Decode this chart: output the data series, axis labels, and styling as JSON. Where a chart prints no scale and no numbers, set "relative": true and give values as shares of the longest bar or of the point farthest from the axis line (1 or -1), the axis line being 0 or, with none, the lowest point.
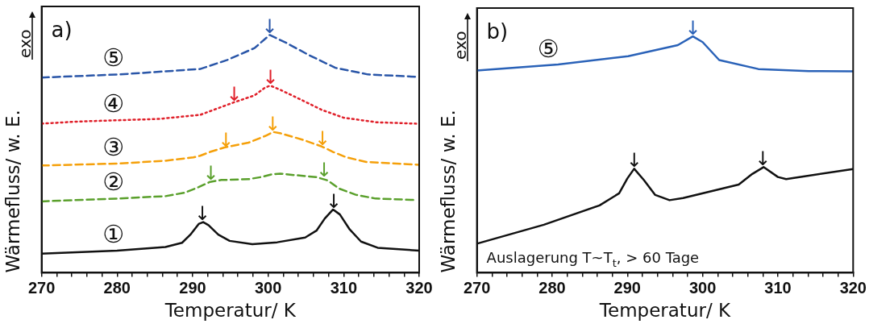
{
  "chart_data": [
    {
      "type": "line",
      "relative": true,
      "xlabel": "Temperatur/ K",
      "ylabel": "Wärmefluss/ w. E.",
      "xlim": [
        270,
        320
      ],
      "xticks": [
        270,
        {
          "value": 272,
          "label": null
        },
        {
          "value": 274,
          "label": null
        },
        {
          "value": 276,
          "label": null
        },
        {
          "value": 278,
          "label": null
        },
        280,
        {
          "value": 282,
          "label": null
        },
        {
          "value": 284,
          "label": null
        },
        {
          "value": 286,
          "label": null
        },
        {
          "value": 288,
          "label": null
        },
        290,
        {
          "value": 292,
          "label": null
        },
        {
          "value": 294,
          "label": null
        },
        {
          "value": 296,
          "label": null
        },
        {
          "value": 298,
          "label": null
        },
        300,
        {
          "value": 302,
          "label": null
        },
        {
          "value": 304,
          "label": null
        },
        {
          "value": 306,
          "label": null
        },
        {
          "value": 308,
          "label": null
        },
        310,
        {
          "value": 312,
          "label": null
        },
        {
          "value": 314,
          "label": null
        },
        {
          "value": 316,
          "label": null
        },
        {
          "value": 318,
          "label": null
        },
        320
      ],
      "tick_labels": "x",
      "legend": false,
      "grid": false,
      "series": [
        {
          "name": "①",
          "color": "#111111",
          "line_style": "solid",
          "x": [
            270,
            280,
            286.4,
            288.6,
            289.7,
            290.8,
            291.4,
            292.1,
            293.4,
            294.9,
            297.9,
            301.2,
            304.9,
            306.4,
            307.5,
            308.6,
            309.5,
            310.8,
            312.3,
            314.5,
            320
          ],
          "values": [
            0.08,
            0.093,
            0.108,
            0.126,
            0.16,
            0.205,
            0.213,
            0.2,
            0.16,
            0.134,
            0.12,
            0.128,
            0.148,
            0.177,
            0.228,
            0.266,
            0.245,
            0.182,
            0.131,
            0.105,
            0.093
          ]
        },
        {
          "name": "②",
          "color": "#5aa02c",
          "line_style": "dashed",
          "x": [
            270,
            280,
            286.4,
            289.0,
            290.8,
            292.3,
            293.8,
            297.5,
            299.0,
            300.5,
            301.6,
            303.4,
            306.4,
            307.9,
            309.4,
            311.6,
            314.2,
            319.3
          ],
          "values": [
            0.3,
            0.312,
            0.322,
            0.337,
            0.36,
            0.382,
            0.39,
            0.394,
            0.402,
            0.414,
            0.417,
            0.411,
            0.402,
            0.388,
            0.354,
            0.328,
            0.312,
            0.306
          ]
        },
        {
          "name": "③",
          "color": "#f5a00a",
          "line_style": "dashed",
          "x": [
            270,
            280,
            286.4,
            290.1,
            291.0,
            292.3,
            294.2,
            297.4,
            299.6,
            300.7,
            301.7,
            304.6,
            307.1,
            308.6,
            310.4,
            313.0,
            320
          ],
          "values": [
            0.451,
            0.459,
            0.471,
            0.485,
            0.492,
            0.508,
            0.527,
            0.547,
            0.575,
            0.592,
            0.586,
            0.559,
            0.531,
            0.508,
            0.485,
            0.466,
            0.454
          ]
        },
        {
          "name": "④",
          "color": "#e0202a",
          "line_style": "dotted",
          "x": [
            270,
            274.9,
            285.6,
            291.0,
            295.5,
            298.2,
            299.6,
            300.3,
            301.7,
            304.6,
            307.1,
            310.0,
            314.3,
            319.6
          ],
          "values": [
            0.627,
            0.636,
            0.647,
            0.664,
            0.717,
            0.746,
            0.779,
            0.787,
            0.768,
            0.724,
            0.685,
            0.652,
            0.633,
            0.627
          ]
        },
        {
          "name": "⑤",
          "color": "#2a56a8",
          "line_style": "dashed",
          "x": [
            270,
            280.3,
            291.0,
            294.6,
            298.2,
            300.2,
            302.4,
            305.3,
            308.9,
            313.2,
            319.6
          ],
          "values": [
            0.821,
            0.834,
            0.857,
            0.895,
            0.945,
            1,
            0.967,
            0.917,
            0.862,
            0.834,
            0.824
          ]
        }
      ],
      "annotations": [
        "a)",
        "exo",
        {
          "text": "↓",
          "x": 291.3,
          "y": 0.215
        },
        {
          "text": "↓",
          "x": 308.7,
          "y": 0.266
        },
        {
          "text": "↓",
          "x": 292.4,
          "y": 0.385
        },
        {
          "text": "↓",
          "x": 307.4,
          "y": 0.398
        },
        {
          "text": "↓",
          "x": 294.4,
          "y": 0.525
        },
        {
          "text": "↓",
          "x": 300.6,
          "y": 0.592
        },
        {
          "text": "↓",
          "x": 307.2,
          "y": 0.531
        },
        {
          "text": "↓",
          "x": 295.5,
          "y": 0.717
        },
        {
          "text": "↓",
          "x": 300.3,
          "y": 0.787
        },
        {
          "text": "↓",
          "x": 300.2,
          "y": 1
        }
      ]
    },
    {
      "type": "line",
      "relative": true,
      "xlabel": "Temperatur/ K",
      "ylabel": "Wärmefluss/ w. E.",
      "xlim": [
        270,
        320
      ],
      "xticks": [
        270,
        {
          "value": 272,
          "label": null
        },
        {
          "value": 274,
          "label": null
        },
        {
          "value": 276,
          "label": null
        },
        {
          "value": 278,
          "label": null
        },
        280,
        {
          "value": 282,
          "label": null
        },
        {
          "value": 284,
          "label": null
        },
        {
          "value": 286,
          "label": null
        },
        {
          "value": 288,
          "label": null
        },
        290,
        {
          "value": 292,
          "label": null
        },
        {
          "value": 294,
          "label": null
        },
        {
          "value": 296,
          "label": null
        },
        {
          "value": 298,
          "label": null
        },
        300,
        {
          "value": 302,
          "label": null
        },
        {
          "value": 304,
          "label": null
        },
        {
          "value": 306,
          "label": null
        },
        {
          "value": 308,
          "label": null
        },
        310,
        {
          "value": 312,
          "label": null
        },
        {
          "value": 314,
          "label": null
        },
        {
          "value": 316,
          "label": null
        },
        {
          "value": 318,
          "label": null
        },
        320
      ],
      "tick_labels": "x",
      "legend": false,
      "grid": false,
      "series": [
        {
          "name": "⑤",
          "color": "#2a62b8",
          "line_style": "solid",
          "x": [
            270,
            280.8,
            290.1,
            296.7,
            298.7,
            300.0,
            302.2,
            307.4,
            314.1,
            320
          ],
          "values": [
            0.856,
            0.881,
            0.916,
            0.963,
            1,
            0.976,
            0.9,
            0.862,
            0.853,
            0.852
          ]
        },
        {
          "color": "#111111",
          "line_style": "solid",
          "x": [
            270,
            278.9,
            286.3,
            288.9,
            290.0,
            290.9,
            292.2,
            293.7,
            295.6,
            297.4,
            304.8,
            306.6,
            308.1,
            310.0,
            311.1,
            320
          ],
          "values": [
            0.123,
            0.203,
            0.285,
            0.336,
            0.399,
            0.44,
            0.392,
            0.329,
            0.307,
            0.316,
            0.373,
            0.418,
            0.447,
            0.405,
            0.396,
            0.439
          ]
        }
      ],
      "annotations": [
        "b)",
        "exo",
        "Auslagerung T~T$_{t}$, > 60 Tage",
        {
          "text": "↓",
          "x": 298.7,
          "y": 1
        },
        {
          "text": "↓",
          "x": 290.9,
          "y": 0.44
        },
        {
          "text": "↓",
          "x": 308.0,
          "y": 0.447
        }
      ]
    }
  ]
}
